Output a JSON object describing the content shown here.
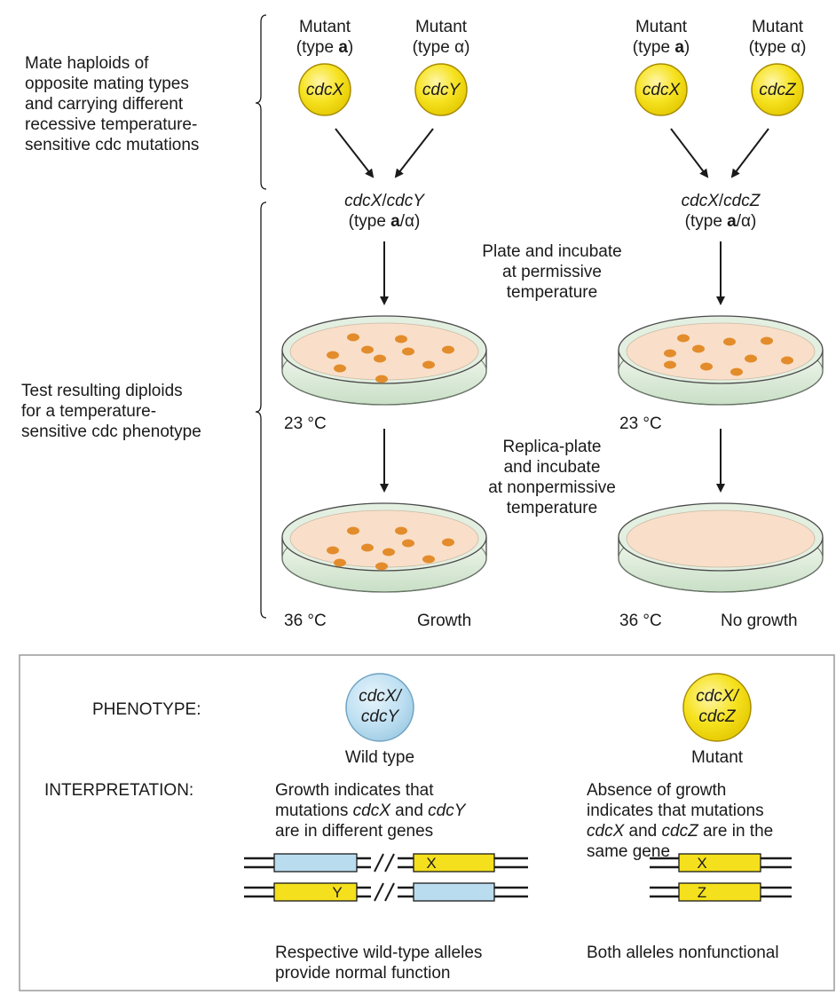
{
  "left_labels": {
    "mate": [
      "Mate haploids of",
      "opposite mating types",
      "and carrying different",
      "recessive temperature-",
      "sensitive cdc mutations"
    ],
    "test": [
      "Test resulting diploids",
      "for a temperature-",
      "sensitive cdc phenotype"
    ]
  },
  "crosses": [
    {
      "parent1": {
        "line1": "Mutant",
        "type_prefix": "(type ",
        "type_letter": "a",
        "type_suffix": ")",
        "gene": "cdcX"
      },
      "parent2": {
        "line1": "Mutant",
        "type_text": "(type α)",
        "gene": "cdcY"
      },
      "diploid": {
        "genotype_a": "cdcX",
        "sep": "/",
        "genotype_b": "cdcY",
        "type_prefix": "(type ",
        "type_letter": "a",
        "type_suffix": "/α)"
      },
      "temp1": "23 °C",
      "temp2": "36 °C",
      "result": "Growth"
    },
    {
      "parent1": {
        "line1": "Mutant",
        "type_prefix": "(type ",
        "type_letter": "a",
        "type_suffix": ")",
        "gene": "cdcX"
      },
      "parent2": {
        "line1": "Mutant",
        "type_text": "(type α)",
        "gene": "cdcZ"
      },
      "diploid": {
        "genotype_a": "cdcX",
        "sep": "/",
        "genotype_b": "cdcZ",
        "type_prefix": "(type ",
        "type_letter": "a",
        "type_suffix": "/α)"
      },
      "temp1": "23 °C",
      "temp2": "36 °C",
      "result": "No growth"
    }
  ],
  "middle_labels": {
    "plate": [
      "Plate and incubate",
      "at permissive",
      "temperature"
    ],
    "replica": [
      "Replica-plate",
      "and incubate",
      "at nonpermissive",
      "temperature"
    ]
  },
  "panel": {
    "phenotype_label": "PHENOTYPE:",
    "interpretation_label": "INTERPRETATION:",
    "left": {
      "circle_line1": "cdcX/",
      "circle_line2": "cdcY",
      "phenotype": "Wild type",
      "interp_1": "Growth indicates that",
      "interp_2a": "mutations ",
      "interp_2b": "cdcX",
      "interp_2c": " and ",
      "interp_2d": "cdcY",
      "interp_3": "are in different genes",
      "allele_top": "X",
      "allele_bottom": "Y",
      "caption_1": "Respective wild-type alleles",
      "caption_2": "provide normal function"
    },
    "right": {
      "circle_line1": "cdcX/",
      "circle_line2": "cdcZ",
      "phenotype": "Mutant",
      "interp_1": "Absence of growth",
      "interp_2": "indicates that mutations",
      "interp_3a": "cdcX",
      "interp_3b": " and ",
      "interp_3c": "cdcZ",
      "interp_3d": " are in the",
      "interp_4": "same gene",
      "allele_top": "X",
      "allele_bottom": "Z",
      "caption_1": "Both alleles nonfunctional"
    }
  },
  "colors": {
    "yellow": "#f4e01c",
    "yellow_stroke": "#b89a00",
    "blue": "#b9dcef",
    "agar": "#f9dfc9",
    "colony": "#e38c2c",
    "dish_rim": "#d9ecd7",
    "panel_border": "#9a9a9a"
  }
}
